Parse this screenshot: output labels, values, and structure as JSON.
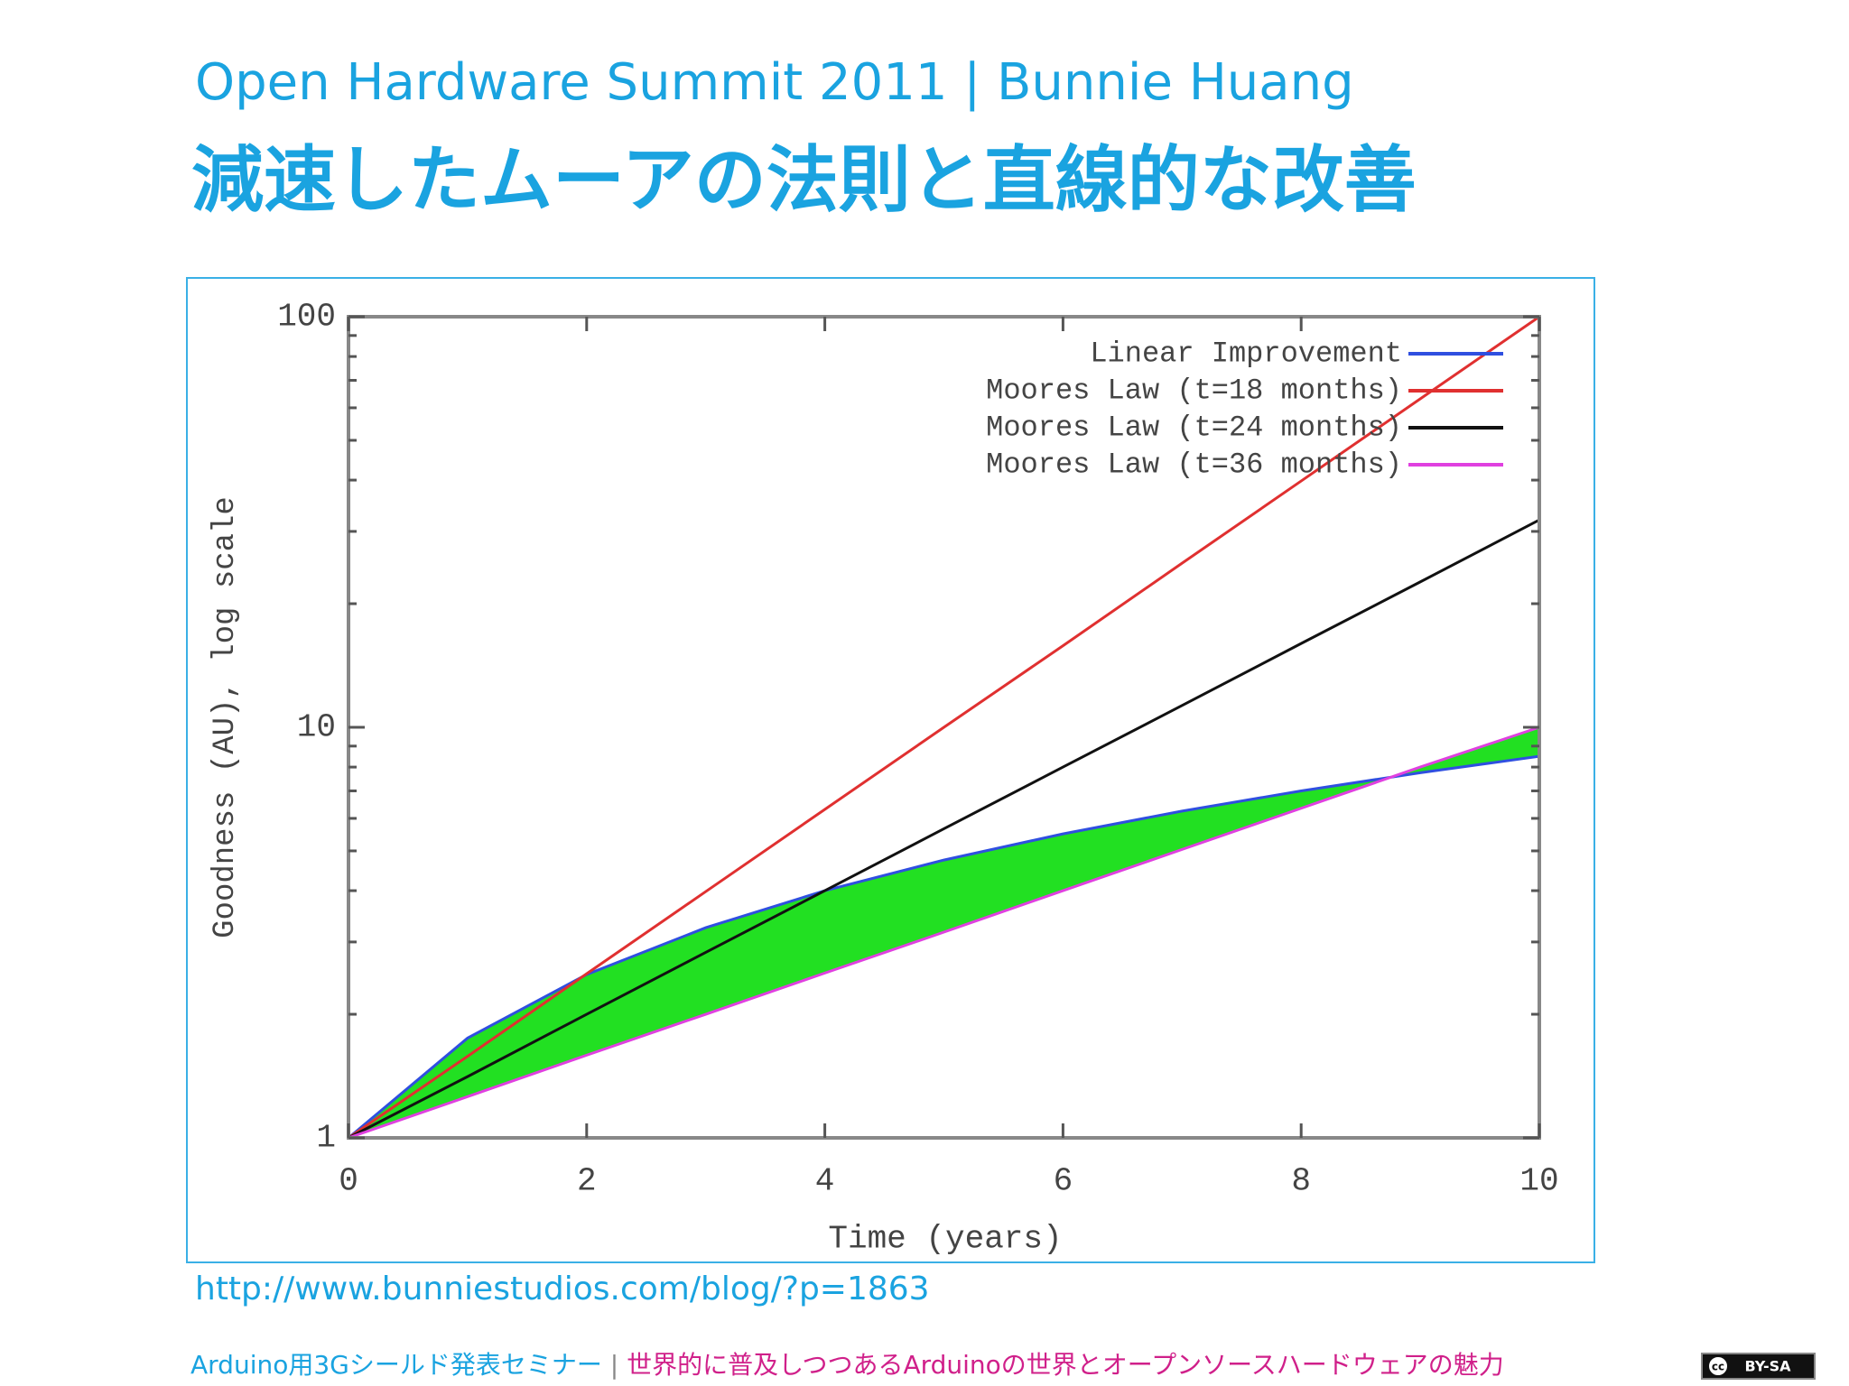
{
  "header": {
    "line1": "Open Hardware Summit 2011 | Bunnie Huang",
    "line2": "減速したムーアの法則と直線的な改善"
  },
  "chart_data": {
    "type": "line",
    "x_label": "Time (years)",
    "y_label": "Goodness (AU), log scale",
    "x": [
      0,
      1,
      2,
      3,
      4,
      5,
      6,
      7,
      8,
      9,
      10
    ],
    "series": [
      {
        "name": "Linear Improvement",
        "color": "#2f4fe0",
        "values": [
          1,
          1.75,
          2.5,
          3.25,
          4,
          4.75,
          5.5,
          6.25,
          7,
          7.75,
          8.5
        ]
      },
      {
        "name": "Moores Law (t=18 months)",
        "color": "#e03030",
        "values": [
          1,
          1.58,
          2.51,
          3.98,
          6.31,
          10,
          15.8,
          25.1,
          39.8,
          63.1,
          100
        ]
      },
      {
        "name": "Moores Law (t=24 months)",
        "color": "#111111",
        "values": [
          1,
          1.41,
          2,
          2.83,
          4,
          5.66,
          8,
          11.3,
          16,
          22.6,
          32
        ]
      },
      {
        "name": "Moores Law (t=36 months)",
        "color": "#e040e0",
        "values": [
          1,
          1.26,
          1.59,
          2,
          2.52,
          3.17,
          4,
          5.04,
          6.35,
          8,
          10
        ]
      }
    ],
    "fill_between_color": "#22e022",
    "xlim": [
      0,
      10
    ],
    "xticks": [
      0,
      2,
      4,
      6,
      8,
      10
    ],
    "ylim": [
      1,
      100
    ],
    "yticks": [
      1,
      10,
      100
    ],
    "yminorticks": [
      2,
      3,
      4,
      5,
      6,
      7,
      8,
      9,
      20,
      30,
      40,
      50,
      60,
      70,
      80,
      90
    ],
    "log_y": true,
    "legend": "top-right"
  },
  "source_url": "http://www.bunniestudios.com/blog/?p=1863",
  "footer": {
    "left": "Arduino用3Gシールド発表セミナー",
    "separator": "|",
    "right": "世界的に普及しつつあるArduinoの世界とオープンソースハードウェアの魅力"
  },
  "badge": {
    "icon": "cc",
    "text": "BY-SA"
  }
}
